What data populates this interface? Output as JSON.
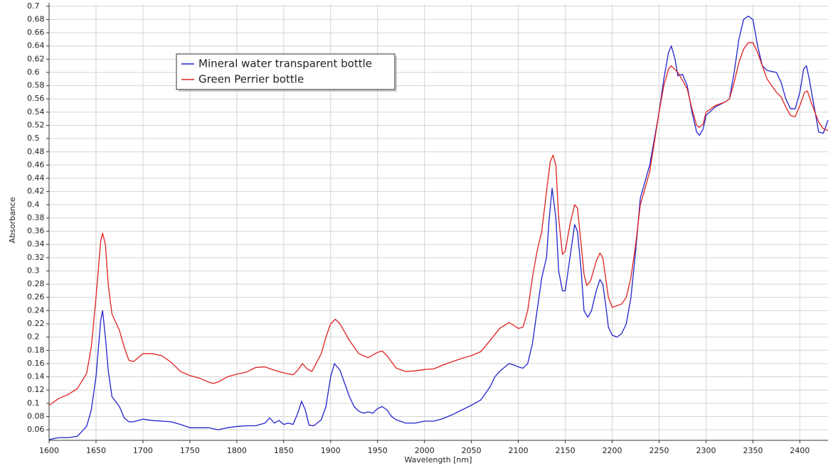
{
  "chart_data": {
    "type": "line",
    "xlabel": "Wavelength [nm]",
    "ylabel": "Absorbance",
    "xlim": [
      1600,
      2430
    ],
    "ylim": [
      0.044,
      0.703
    ],
    "xticks": [
      1600,
      1650,
      1700,
      1750,
      1800,
      1850,
      1900,
      1950,
      2000,
      2050,
      2100,
      2150,
      2200,
      2250,
      2300,
      2350,
      2400
    ],
    "yticks": [
      0.06,
      0.08,
      0.1,
      0.12,
      0.14,
      0.16,
      0.18,
      0.2,
      0.22,
      0.24,
      0.26,
      0.28,
      0.3,
      0.32,
      0.34,
      0.36,
      0.38,
      0.4,
      0.42,
      0.44,
      0.46,
      0.48,
      0.5,
      0.52,
      0.54,
      0.56,
      0.58,
      0.6,
      0.62,
      0.64,
      0.66,
      0.68,
      0.7
    ],
    "grid": true,
    "legend": "upper left",
    "series": [
      {
        "name": "Mineral water transparent bottle",
        "color": "#2222cc",
        "x": [
          1600,
          1610,
          1620,
          1630,
          1640,
          1645,
          1650,
          1655,
          1657,
          1660,
          1663,
          1667,
          1675,
          1680,
          1685,
          1690,
          1700,
          1710,
          1730,
          1740,
          1750,
          1770,
          1780,
          1790,
          1800,
          1810,
          1820,
          1830,
          1835,
          1840,
          1845,
          1850,
          1855,
          1860,
          1865,
          1869,
          1873,
          1877,
          1882,
          1890,
          1895,
          1900,
          1904,
          1910,
          1915,
          1920,
          1925,
          1930,
          1935,
          1940,
          1945,
          1950,
          1955,
          1960,
          1965,
          1970,
          1980,
          1990,
          2000,
          2010,
          2020,
          2030,
          2040,
          2050,
          2060,
          2065,
          2070,
          2075,
          2080,
          2090,
          2095,
          2100,
          2105,
          2110,
          2115,
          2120,
          2125,
          2130,
          2133,
          2136,
          2140,
          2143,
          2147,
          2150,
          2155,
          2160,
          2163,
          2167,
          2170,
          2174,
          2178,
          2183,
          2187,
          2190,
          2193,
          2196,
          2200,
          2205,
          2210,
          2215,
          2220,
          2225,
          2230,
          2240,
          2250,
          2255,
          2260,
          2263,
          2267,
          2270,
          2275,
          2280,
          2285,
          2290,
          2293,
          2297,
          2300,
          2310,
          2320,
          2325,
          2330,
          2335,
          2340,
          2345,
          2350,
          2355,
          2360,
          2365,
          2375,
          2380,
          2385,
          2390,
          2395,
          2400,
          2404,
          2407,
          2410,
          2415,
          2420,
          2425,
          2430
        ],
        "values": [
          0.045,
          0.048,
          0.048,
          0.05,
          0.065,
          0.09,
          0.14,
          0.225,
          0.24,
          0.2,
          0.15,
          0.11,
          0.095,
          0.078,
          0.072,
          0.072,
          0.076,
          0.074,
          0.072,
          0.068,
          0.063,
          0.063,
          0.06,
          0.063,
          0.065,
          0.066,
          0.066,
          0.07,
          0.078,
          0.07,
          0.074,
          0.068,
          0.07,
          0.068,
          0.085,
          0.103,
          0.09,
          0.067,
          0.066,
          0.075,
          0.095,
          0.14,
          0.16,
          0.15,
          0.13,
          0.11,
          0.095,
          0.088,
          0.085,
          0.087,
          0.085,
          0.092,
          0.095,
          0.09,
          0.08,
          0.075,
          0.07,
          0.07,
          0.073,
          0.073,
          0.077,
          0.083,
          0.09,
          0.097,
          0.105,
          0.115,
          0.125,
          0.14,
          0.148,
          0.16,
          0.158,
          0.155,
          0.153,
          0.16,
          0.19,
          0.24,
          0.29,
          0.32,
          0.38,
          0.425,
          0.38,
          0.3,
          0.27,
          0.27,
          0.32,
          0.37,
          0.36,
          0.3,
          0.24,
          0.23,
          0.24,
          0.27,
          0.287,
          0.28,
          0.25,
          0.215,
          0.203,
          0.2,
          0.205,
          0.22,
          0.26,
          0.33,
          0.41,
          0.46,
          0.54,
          0.59,
          0.63,
          0.64,
          0.62,
          0.595,
          0.597,
          0.58,
          0.54,
          0.51,
          0.505,
          0.515,
          0.535,
          0.548,
          0.555,
          0.56,
          0.6,
          0.65,
          0.68,
          0.685,
          0.68,
          0.64,
          0.61,
          0.603,
          0.6,
          0.585,
          0.56,
          0.545,
          0.545,
          0.57,
          0.605,
          0.61,
          0.59,
          0.55,
          0.51,
          0.508,
          0.528
        ]
      },
      {
        "name": "Green Perrier bottle",
        "color": "#e02020",
        "x": [
          1600,
          1610,
          1620,
          1630,
          1640,
          1645,
          1650,
          1655,
          1657,
          1660,
          1663,
          1667,
          1675,
          1680,
          1685,
          1690,
          1700,
          1710,
          1720,
          1730,
          1740,
          1750,
          1760,
          1770,
          1775,
          1780,
          1790,
          1800,
          1810,
          1820,
          1830,
          1840,
          1850,
          1860,
          1865,
          1870,
          1875,
          1880,
          1890,
          1895,
          1900,
          1905,
          1910,
          1920,
          1930,
          1940,
          1950,
          1955,
          1960,
          1970,
          1980,
          1990,
          2000,
          2010,
          2020,
          2030,
          2040,
          2050,
          2060,
          2070,
          2080,
          2090,
          2095,
          2100,
          2105,
          2110,
          2115,
          2120,
          2125,
          2130,
          2134,
          2137,
          2140,
          2143,
          2147,
          2150,
          2155,
          2160,
          2163,
          2167,
          2170,
          2173,
          2177,
          2183,
          2187,
          2190,
          2193,
          2196,
          2200,
          2210,
          2215,
          2220,
          2225,
          2230,
          2240,
          2250,
          2255,
          2260,
          2263,
          2270,
          2275,
          2280,
          2285,
          2290,
          2293,
          2297,
          2300,
          2310,
          2320,
          2325,
          2330,
          2335,
          2340,
          2345,
          2350,
          2355,
          2360,
          2365,
          2375,
          2380,
          2385,
          2390,
          2395,
          2400,
          2405,
          2408,
          2412,
          2420,
          2425,
          2430
        ],
        "values": [
          0.097,
          0.107,
          0.113,
          0.122,
          0.145,
          0.185,
          0.26,
          0.345,
          0.357,
          0.34,
          0.28,
          0.235,
          0.21,
          0.185,
          0.165,
          0.163,
          0.175,
          0.175,
          0.172,
          0.162,
          0.148,
          0.142,
          0.138,
          0.132,
          0.13,
          0.132,
          0.14,
          0.144,
          0.147,
          0.154,
          0.155,
          0.15,
          0.146,
          0.143,
          0.15,
          0.16,
          0.152,
          0.148,
          0.175,
          0.2,
          0.22,
          0.227,
          0.22,
          0.195,
          0.175,
          0.169,
          0.177,
          0.179,
          0.172,
          0.153,
          0.148,
          0.149,
          0.151,
          0.152,
          0.158,
          0.163,
          0.168,
          0.172,
          0.178,
          0.195,
          0.213,
          0.222,
          0.218,
          0.213,
          0.215,
          0.24,
          0.29,
          0.33,
          0.36,
          0.42,
          0.465,
          0.475,
          0.46,
          0.38,
          0.325,
          0.33,
          0.37,
          0.4,
          0.395,
          0.34,
          0.295,
          0.278,
          0.285,
          0.315,
          0.327,
          0.32,
          0.29,
          0.26,
          0.245,
          0.25,
          0.26,
          0.29,
          0.34,
          0.4,
          0.45,
          0.54,
          0.58,
          0.605,
          0.61,
          0.6,
          0.588,
          0.575,
          0.545,
          0.52,
          0.517,
          0.522,
          0.54,
          0.55,
          0.555,
          0.56,
          0.585,
          0.615,
          0.635,
          0.645,
          0.645,
          0.63,
          0.61,
          0.59,
          0.57,
          0.563,
          0.548,
          0.535,
          0.533,
          0.55,
          0.57,
          0.572,
          0.555,
          0.525,
          0.515,
          0.512
        ]
      }
    ]
  }
}
